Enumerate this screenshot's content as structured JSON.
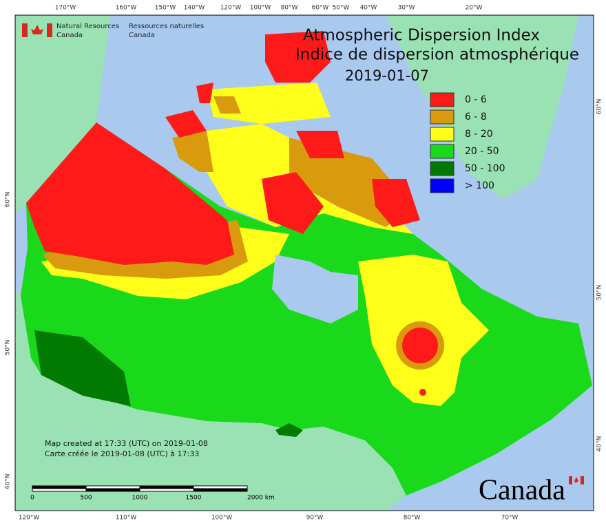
{
  "agency": {
    "en_line1": "Natural Resources",
    "en_line2": "Canada",
    "fr_line1": "Ressources naturelles",
    "fr_line2": "Canada"
  },
  "title": {
    "en": "Atmospheric Dispersion Index",
    "fr": "Indice de dispersion atmosphérique",
    "date": "2019-01-07"
  },
  "legend": [
    {
      "label": "0 - 6",
      "color": "#ff1a1a"
    },
    {
      "label": "6 - 8",
      "color": "#d99a0d"
    },
    {
      "label": "8 - 20",
      "color": "#ffff1a"
    },
    {
      "label": "20 - 50",
      "color": "#1ad91a"
    },
    {
      "label": "50 - 100",
      "color": "#007a00"
    },
    {
      "label": "> 100",
      "color": "#0000ff"
    }
  ],
  "credits": [
    "Map created at 17:33 (UTC) on 2019-01-08",
    "Carte créée le 2019-01-08 (UTC) à 17:33"
  ],
  "scale_bar": {
    "labels": [
      "0",
      "500",
      "1000",
      "1500",
      "2000  km"
    ]
  },
  "graticule": {
    "top": [
      "170°W",
      "160°W",
      "150°W",
      "140°W",
      "120°W",
      "100°W",
      "80°W",
      "60°W",
      "50°W",
      "40°W",
      "30°W",
      "20°W"
    ],
    "bottom": [
      "120°W",
      "110°W",
      "100°W",
      "90°W",
      "80°W",
      "70°W"
    ],
    "left": [
      "60°N",
      "50°N",
      "40°N"
    ],
    "right": [
      "60°N",
      "50°N",
      "40°N"
    ]
  },
  "wordmark": "Canada"
}
